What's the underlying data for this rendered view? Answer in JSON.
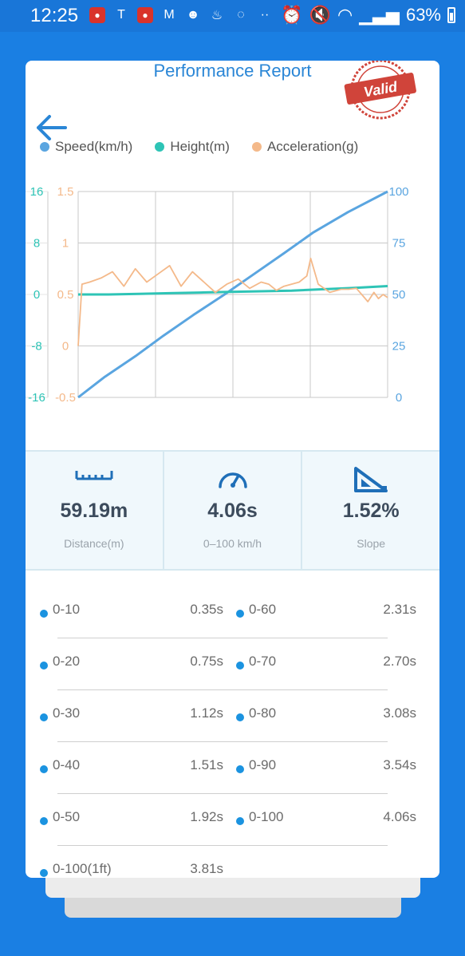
{
  "status_bar": {
    "time": "12:25",
    "battery": "63%",
    "notification_icons": [
      "app-red-icon",
      "tesla-icon",
      "app-red-icon",
      "gmail-icon",
      "smiley-icon",
      "bath-icon",
      "chat-icon",
      "more-dots-icon"
    ],
    "system_icons": [
      "alarm-icon",
      "mute-icon",
      "wifi-icon",
      "signal-icon",
      "battery-icon"
    ]
  },
  "header": {
    "title": "Performance Report",
    "stamp_text": "Valid"
  },
  "legend": [
    {
      "label": "Speed(km/h)",
      "color": "#5aa5e0"
    },
    {
      "label": "Height(m)",
      "color": "#2ec4b6"
    },
    {
      "label": "Acceleration(g)",
      "color": "#f4b98a"
    }
  ],
  "chart_data": {
    "type": "line",
    "x_range": [
      0,
      4.06
    ],
    "axes": {
      "height_ticks": [
        "16",
        "8",
        "0",
        "-8",
        "-16"
      ],
      "accel_ticks": [
        "1.5",
        "1",
        "0.5",
        "0",
        "-0.5"
      ],
      "speed_ticks": [
        "100",
        "75",
        "50",
        "25",
        "0"
      ],
      "height_range": [
        -16,
        16
      ],
      "accel_range": [
        -0.5,
        1.5
      ],
      "speed_range": [
        0,
        100
      ]
    },
    "grid": true,
    "series": [
      {
        "name": "Speed(km/h)",
        "axis": "right",
        "color": "#5aa5e0",
        "values": [
          0,
          10,
          20,
          30,
          40,
          50,
          60,
          70,
          80,
          90,
          100
        ],
        "x": [
          0,
          0.35,
          0.75,
          1.12,
          1.51,
          1.92,
          2.31,
          2.7,
          3.08,
          3.54,
          4.06
        ]
      },
      {
        "name": "Height(m)",
        "axis": "left",
        "color": "#2ec4b6",
        "values": [
          0,
          0,
          0.1,
          0.2,
          0.3,
          0.4,
          0.5,
          0.6,
          0.8,
          1.0,
          1.3
        ],
        "x": [
          0,
          0.4,
          0.8,
          1.2,
          1.6,
          2.0,
          2.4,
          2.8,
          3.2,
          3.6,
          4.06
        ]
      },
      {
        "name": "Acceleration(g)",
        "axis": "mid",
        "color": "#f4b98a",
        "values": [
          0,
          0.6,
          0.62,
          0.66,
          0.72,
          0.58,
          0.75,
          0.62,
          0.7,
          0.78,
          0.58,
          0.72,
          0.62,
          0.52,
          0.6,
          0.65,
          0.56,
          0.62,
          0.6,
          0.54,
          0.58,
          0.6,
          0.62,
          0.68,
          0.85,
          0.6,
          0.52,
          0.55,
          0.55,
          0.56,
          0.5,
          0.43,
          0.52,
          0.46,
          0.5,
          0.47
        ],
        "x": [
          0,
          0.05,
          0.15,
          0.3,
          0.45,
          0.6,
          0.75,
          0.9,
          1.05,
          1.2,
          1.35,
          1.5,
          1.65,
          1.8,
          1.95,
          2.1,
          2.25,
          2.4,
          2.5,
          2.6,
          2.7,
          2.8,
          2.9,
          3.0,
          3.05,
          3.15,
          3.3,
          3.45,
          3.55,
          3.65,
          3.72,
          3.8,
          3.88,
          3.94,
          4.0,
          4.06
        ]
      }
    ]
  },
  "stats": [
    {
      "icon": "ruler-icon",
      "value": "59.19m",
      "label": "Distance(m)"
    },
    {
      "icon": "speedometer-icon",
      "value": "4.06s",
      "label": "0–100 km/h"
    },
    {
      "icon": "slope-icon",
      "value": "1.52%",
      "label": "Slope"
    }
  ],
  "splits": [
    [
      {
        "label": "0-10",
        "time": "0.35s"
      },
      {
        "label": "0-60",
        "time": "2.31s"
      }
    ],
    [
      {
        "label": "0-20",
        "time": "0.75s"
      },
      {
        "label": "0-70",
        "time": "2.70s"
      }
    ],
    [
      {
        "label": "0-30",
        "time": "1.12s"
      },
      {
        "label": "0-80",
        "time": "3.08s"
      }
    ],
    [
      {
        "label": "0-40",
        "time": "1.51s"
      },
      {
        "label": "0-90",
        "time": "3.54s"
      }
    ],
    [
      {
        "label": "0-50",
        "time": "1.92s"
      },
      {
        "label": "0-100",
        "time": "4.06s"
      }
    ],
    [
      {
        "label": "0-100(1ft)",
        "time": "3.81s"
      }
    ]
  ]
}
